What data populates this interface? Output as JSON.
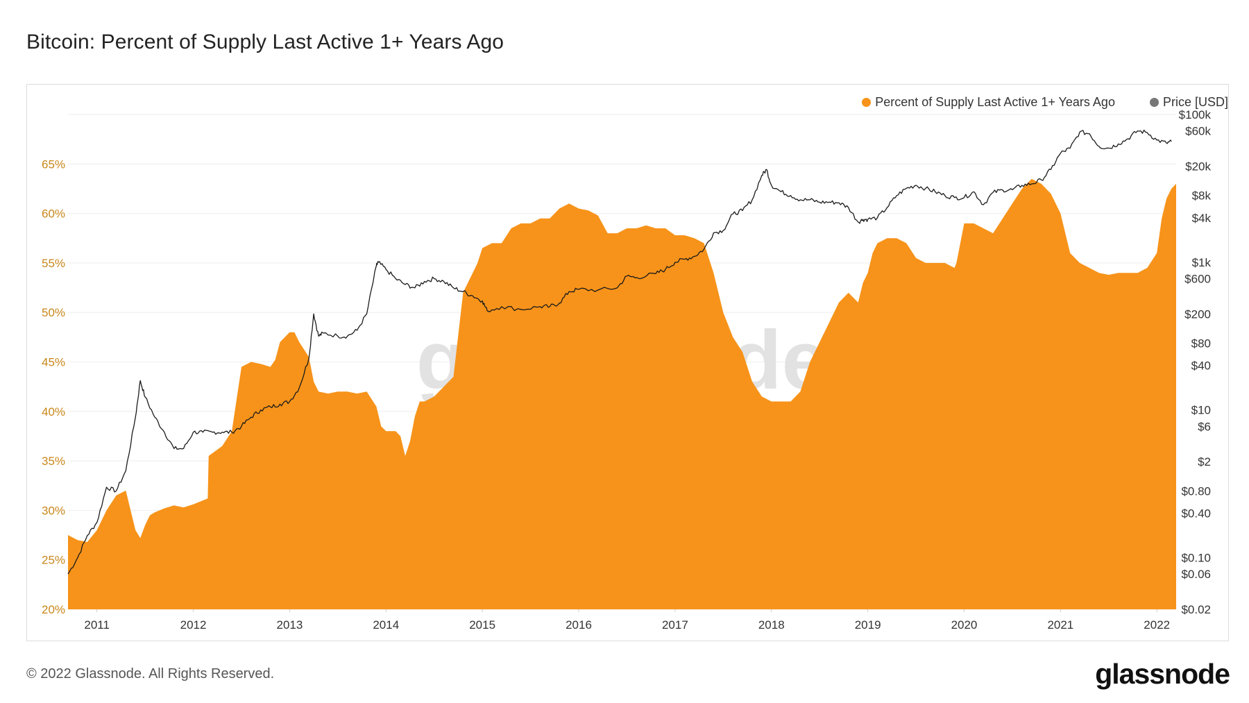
{
  "title": "Bitcoin: Percent of Supply Last Active 1+ Years Ago",
  "footer": {
    "copyright": "© 2022 Glassnode. All Rights Reserved.",
    "brand": "glassnode"
  },
  "watermark": "glassnode",
  "legend": [
    {
      "label": "Percent of Supply Last Active 1+ Years Ago",
      "color": "#f7931a"
    },
    {
      "label": "Price [USD]",
      "color": "#777777"
    }
  ],
  "colors": {
    "area": "#f7931a",
    "price_line": "#1a1a1a",
    "left_ticks": "#c8861a",
    "grid": "#eeeeee"
  },
  "chart_data": {
    "type": "area",
    "title": "Bitcoin: Percent of Supply Last Active 1+ Years Ago",
    "x_range": [
      2010.7,
      2022.2
    ],
    "x_ticks": [
      "2011",
      "2012",
      "2013",
      "2014",
      "2015",
      "2016",
      "2017",
      "2018",
      "2019",
      "2020",
      "2021",
      "2022"
    ],
    "y_left": {
      "label": "Percent of Supply Last Active 1+ Years Ago",
      "range": [
        20,
        70
      ],
      "ticks": [
        "20%",
        "25%",
        "30%",
        "35%",
        "40%",
        "45%",
        "50%",
        "55%",
        "60%",
        "65%"
      ]
    },
    "y_right": {
      "label": "Price [USD]",
      "scale": "log",
      "range": [
        0.02,
        100000
      ],
      "ticks": [
        {
          "label": "$100k",
          "value": 100000
        },
        {
          "label": "$60k",
          "value": 60000
        },
        {
          "label": "$20k",
          "value": 20000
        },
        {
          "label": "$8k",
          "value": 8000
        },
        {
          "label": "$4k",
          "value": 4000
        },
        {
          "label": "$1k",
          "value": 1000
        },
        {
          "label": "$600",
          "value": 600
        },
        {
          "label": "$200",
          "value": 200
        },
        {
          "label": "$80",
          "value": 80
        },
        {
          "label": "$40",
          "value": 40
        },
        {
          "label": "$10",
          "value": 10
        },
        {
          "label": "$6",
          "value": 6
        },
        {
          "label": "$2",
          "value": 2
        },
        {
          "label": "$0.80",
          "value": 0.8
        },
        {
          "label": "$0.40",
          "value": 0.4
        },
        {
          "label": "$0.10",
          "value": 0.1
        },
        {
          "label": "$0.06",
          "value": 0.06
        },
        {
          "label": "$0.02",
          "value": 0.02
        }
      ]
    },
    "series": [
      {
        "name": "Percent of Supply Last Active 1+ Years Ago",
        "axis": "left",
        "type": "area",
        "x": [
          2010.7,
          2010.8,
          2010.9,
          2011.0,
          2011.1,
          2011.2,
          2011.3,
          2011.4,
          2011.45,
          2011.5,
          2011.55,
          2011.6,
          2011.7,
          2011.8,
          2011.9,
          2012.0,
          2012.1,
          2012.15,
          2012.16,
          2012.3,
          2012.4,
          2012.5,
          2012.6,
          2012.7,
          2012.8,
          2012.85,
          2012.9,
          2013.0,
          2013.05,
          2013.1,
          2013.2,
          2013.25,
          2013.3,
          2013.4,
          2013.5,
          2013.6,
          2013.7,
          2013.8,
          2013.9,
          2013.95,
          2014.0,
          2014.1,
          2014.15,
          2014.2,
          2014.25,
          2014.3,
          2014.35,
          2014.4,
          2014.5,
          2014.6,
          2014.7,
          2014.8,
          2014.85,
          2014.9,
          2014.95,
          2015.0,
          2015.1,
          2015.2,
          2015.3,
          2015.4,
          2015.5,
          2015.6,
          2015.7,
          2015.8,
          2015.9,
          2016.0,
          2016.1,
          2016.2,
          2016.3,
          2016.4,
          2016.5,
          2016.6,
          2016.7,
          2016.8,
          2016.9,
          2017.0,
          2017.1,
          2017.2,
          2017.3,
          2017.4,
          2017.5,
          2017.6,
          2017.7,
          2017.8,
          2017.9,
          2018.0,
          2018.1,
          2018.2,
          2018.3,
          2018.4,
          2018.5,
          2018.6,
          2018.7,
          2018.8,
          2018.9,
          2018.95,
          2019.0,
          2019.05,
          2019.1,
          2019.2,
          2019.3,
          2019.4,
          2019.5,
          2019.6,
          2019.7,
          2019.8,
          2019.9,
          2019.92,
          2020.0,
          2020.05,
          2020.1,
          2020.2,
          2020.3,
          2020.4,
          2020.5,
          2020.6,
          2020.7,
          2020.8,
          2020.9,
          2021.0,
          2021.1,
          2021.2,
          2021.3,
          2021.4,
          2021.5,
          2021.6,
          2021.7,
          2021.8,
          2021.9,
          2022.0,
          2022.05,
          2022.1,
          2022.15,
          2022.2
        ],
        "y": [
          27.5,
          27.0,
          26.8,
          28.0,
          30.0,
          31.5,
          32.0,
          28.0,
          27.2,
          28.5,
          29.5,
          29.8,
          30.2,
          30.5,
          30.3,
          30.6,
          31.0,
          31.2,
          35.5,
          36.5,
          38.0,
          44.5,
          45.0,
          44.8,
          44.5,
          45.2,
          47.0,
          48.0,
          48.0,
          47.0,
          45.5,
          43.0,
          42.0,
          41.8,
          42.0,
          42.0,
          41.8,
          42.0,
          40.5,
          38.5,
          38.0,
          38.0,
          37.5,
          35.5,
          37.0,
          39.5,
          41.0,
          41.0,
          41.5,
          42.5,
          43.5,
          52.0,
          53.0,
          54.0,
          55.0,
          56.5,
          57.0,
          57.0,
          58.5,
          59.0,
          59.0,
          59.5,
          59.5,
          60.5,
          61.0,
          60.5,
          60.3,
          59.8,
          58.0,
          58.0,
          58.5,
          58.5,
          58.8,
          58.5,
          58.5,
          57.8,
          57.8,
          57.5,
          57.0,
          54.0,
          50.0,
          47.5,
          46.0,
          43.0,
          41.5,
          41.0,
          41.0,
          41.0,
          42.0,
          45.0,
          47.0,
          49.0,
          51.0,
          52.0,
          51.0,
          53.0,
          54.0,
          56.0,
          57.0,
          57.5,
          57.5,
          57.0,
          55.5,
          55.0,
          55.0,
          55.0,
          54.5,
          55.0,
          59.0,
          59.0,
          59.0,
          58.5,
          58.0,
          59.5,
          61.0,
          62.5,
          63.5,
          63.0,
          62.0,
          60.0,
          56.0,
          55.0,
          54.5,
          54.0,
          53.8,
          54.0,
          54.0,
          54.0,
          54.5,
          56.0,
          59.5,
          61.5,
          62.5,
          63.0
        ]
      },
      {
        "name": "Price [USD]",
        "axis": "right",
        "type": "line",
        "scale": "log",
        "x": [
          2010.7,
          2010.8,
          2010.9,
          2011.0,
          2011.1,
          2011.2,
          2011.3,
          2011.4,
          2011.45,
          2011.5,
          2011.6,
          2011.7,
          2011.8,
          2011.9,
          2012.0,
          2012.1,
          2012.2,
          2012.3,
          2012.4,
          2012.5,
          2012.6,
          2012.7,
          2012.8,
          2012.9,
          2013.0,
          2013.1,
          2013.2,
          2013.25,
          2013.3,
          2013.35,
          2013.5,
          2013.6,
          2013.7,
          2013.8,
          2013.9,
          2013.92,
          2014.0,
          2014.1,
          2014.2,
          2014.3,
          2014.4,
          2014.5,
          2014.6,
          2014.7,
          2014.8,
          2014.9,
          2015.0,
          2015.05,
          2015.2,
          2015.4,
          2015.6,
          2015.7,
          2015.8,
          2015.9,
          2016.0,
          2016.2,
          2016.4,
          2016.5,
          2016.6,
          2016.8,
          2016.9,
          2017.0,
          2017.1,
          2017.2,
          2017.3,
          2017.4,
          2017.5,
          2017.6,
          2017.7,
          2017.8,
          2017.9,
          2017.95,
          2018.0,
          2018.1,
          2018.2,
          2018.3,
          2018.4,
          2018.5,
          2018.6,
          2018.7,
          2018.8,
          2018.9,
          2018.95,
          2019.0,
          2019.1,
          2019.2,
          2019.3,
          2019.4,
          2019.5,
          2019.6,
          2019.7,
          2019.8,
          2019.9,
          2020.0,
          2020.1,
          2020.2,
          2020.3,
          2020.4,
          2020.5,
          2020.6,
          2020.7,
          2020.8,
          2020.9,
          2021.0,
          2021.1,
          2021.2,
          2021.3,
          2021.4,
          2021.5,
          2021.6,
          2021.7,
          2021.8,
          2021.9,
          2022.0,
          2022.1,
          2022.15
        ],
        "y": [
          0.06,
          0.1,
          0.2,
          0.3,
          0.9,
          0.8,
          1.5,
          8,
          25,
          15,
          8,
          5,
          3,
          3,
          5,
          5,
          5,
          5,
          5,
          6,
          8,
          10,
          11,
          12,
          13,
          20,
          50,
          200,
          100,
          110,
          100,
          100,
          120,
          200,
          900,
          1000,
          800,
          600,
          500,
          450,
          550,
          600,
          550,
          450,
          400,
          350,
          300,
          220,
          250,
          230,
          250,
          250,
          280,
          400,
          430,
          420,
          450,
          650,
          620,
          700,
          800,
          1000,
          1100,
          1200,
          1500,
          2500,
          2700,
          4500,
          5000,
          7000,
          15000,
          18000,
          11000,
          9000,
          8000,
          7000,
          7000,
          6500,
          6500,
          6400,
          5500,
          3500,
          3800,
          3800,
          4000,
          5500,
          8000,
          10000,
          11000,
          10000,
          9000,
          8000,
          7500,
          7500,
          9000,
          6000,
          8800,
          9500,
          9600,
          11000,
          11500,
          13000,
          18000,
          30000,
          35000,
          58000,
          55000,
          37000,
          35000,
          40000,
          47000,
          60000,
          57000,
          45000,
          41000,
          43000
        ]
      }
    ]
  }
}
